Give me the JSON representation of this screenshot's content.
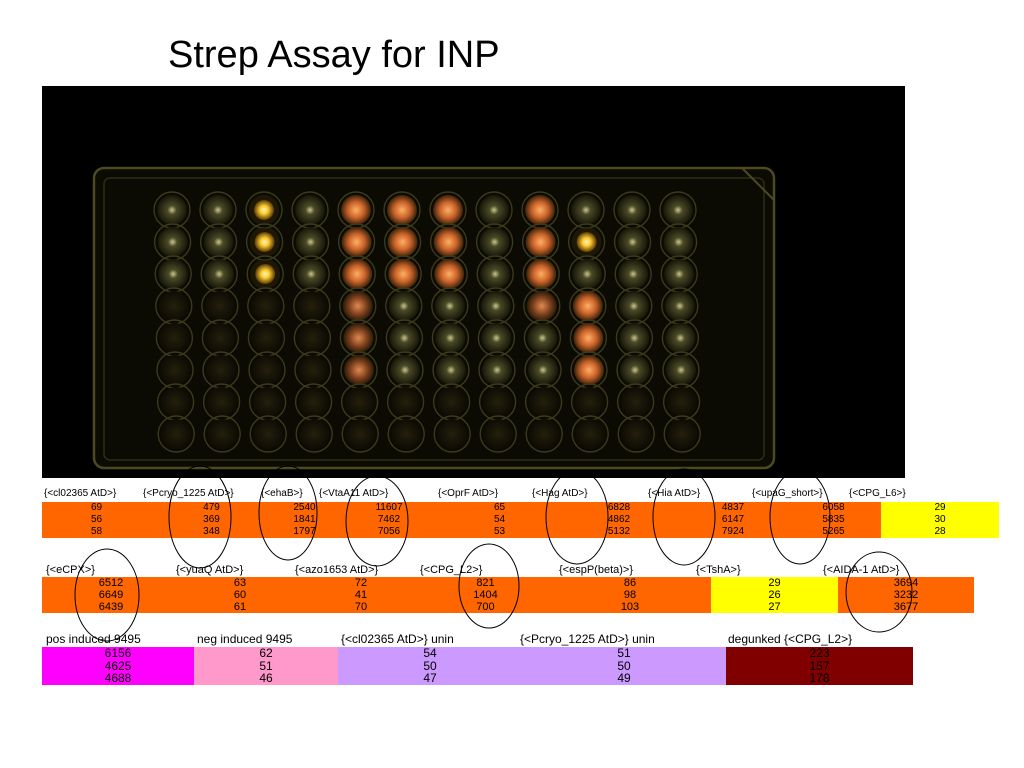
{
  "title": "Strep Assay for INP",
  "colors": {
    "orange": "#ff6600",
    "yellow": "#ffff00",
    "magenta": "#ff00ff",
    "pink": "#ff99cc",
    "lavender": "#cc99ff",
    "maroon": "#800000",
    "photo_bg": "#000000"
  },
  "table1": {
    "headers": [
      "{<cl02365 AtD>}",
      "{<Pcryo_1225 AtD>}",
      "{<ehaB>}",
      "{<VtaA11 AtD>}",
      "{<OprF AtD>}",
      "{<Hag AtD>}",
      "{<Hia AtD>}",
      "{<upaG_short>}",
      "{<CPG_L6>}"
    ],
    "rows": [
      [
        "69",
        "479",
        "2540",
        "11607",
        "65",
        "6828",
        "4837",
        "6058",
        "29"
      ],
      [
        "56",
        "369",
        "1841",
        "7462",
        "54",
        "4862",
        "6147",
        "5835",
        "30"
      ],
      [
        "58",
        "348",
        "1797",
        "7056",
        "53",
        "5132",
        "7924",
        "5265",
        "28"
      ]
    ],
    "cell_colors": [
      "#ff6600",
      "#ff6600",
      "#ff6600",
      "#ff6600",
      "#ff6600",
      "#ff6600",
      "#ff6600",
      "#ff6600",
      "#ffff00"
    ]
  },
  "table2": {
    "headers": [
      "{<eCPX>}",
      "{<yuaQ AtD>}",
      "{<azo1653 AtD>}",
      "{<CPG_L2>}",
      "{<espP(beta)>}",
      "{<TshA>}",
      "{<AIDA-1 AtD>}"
    ],
    "rows": [
      [
        "6512",
        "63",
        "72",
        "821",
        "86",
        "29",
        "3694"
      ],
      [
        "6649",
        "60",
        "41",
        "1404",
        "98",
        "26",
        "3232"
      ],
      [
        "6439",
        "61",
        "70",
        "700",
        "103",
        "27",
        "3677"
      ]
    ],
    "cell_colors": [
      "#ff6600",
      "#ff6600",
      "#ff6600",
      "#ff6600",
      "#ff6600",
      "#ffff00",
      "#ff6600"
    ]
  },
  "table3": {
    "headers": [
      "pos induced 9495",
      "neg induced 9495",
      "{<cl02365 AtD>} unin",
      "{<Pcryo_1225 AtD>} unin",
      "degunked {<CPG_L2>}"
    ],
    "rows": [
      [
        "6156",
        "62",
        "54",
        "51",
        "223"
      ],
      [
        "4625",
        "51",
        "50",
        "50",
        "157"
      ],
      [
        "4688",
        "46",
        "47",
        "49",
        "178"
      ]
    ],
    "cell_colors": [
      "#ff00ff",
      "#ff99cc",
      "#cc99ff",
      "#cc99ff",
      "#800000"
    ]
  }
}
